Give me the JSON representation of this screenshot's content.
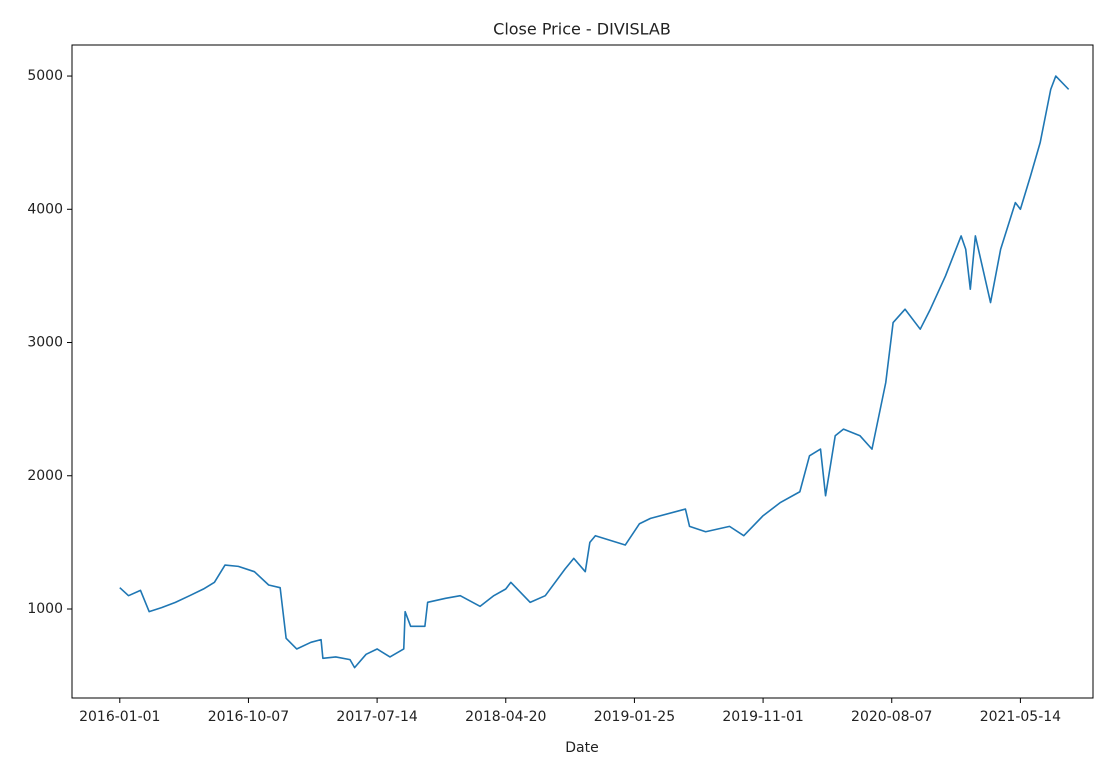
{
  "chart_data": {
    "type": "line",
    "title": "Close Price - DIVISLAB",
    "x_label": "Date",
    "x": [
      "2016-01-01",
      "2016-01-20",
      "2016-02-15",
      "2016-03-05",
      "2016-04-01",
      "2016-05-01",
      "2016-06-01",
      "2016-07-01",
      "2016-07-25",
      "2016-08-17",
      "2016-09-15",
      "2016-10-20",
      "2016-11-20",
      "2016-12-15",
      "2016-12-28",
      "2017-01-20",
      "2017-02-20",
      "2017-03-14",
      "2017-03-18",
      "2017-04-15",
      "2017-05-16",
      "2017-05-26",
      "2017-06-20",
      "2017-07-14",
      "2017-08-11",
      "2017-09-10",
      "2017-09-13",
      "2017-09-25",
      "2017-10-26",
      "2017-11-01",
      "2017-12-10",
      "2018-01-11",
      "2018-02-23",
      "2018-03-25",
      "2018-04-20",
      "2018-05-01",
      "2018-06-12",
      "2018-07-15",
      "2018-08-27",
      "2018-09-15",
      "2018-10-10",
      "2018-10-20",
      "2018-11-01",
      "2019-01-05",
      "2019-02-05",
      "2019-03-01",
      "2019-05-16",
      "2019-05-25",
      "2019-06-29",
      "2019-08-20",
      "2019-09-20",
      "2019-11-01",
      "2019-12-09",
      "2020-01-20",
      "2020-02-10",
      "2020-03-05",
      "2020-03-16",
      "2020-04-06",
      "2020-04-24",
      "2020-05-30",
      "2020-06-25",
      "2020-07-25",
      "2020-08-10",
      "2020-09-05",
      "2020-10-08",
      "2020-10-30",
      "2020-12-02",
      "2021-01-05",
      "2021-01-15",
      "2021-01-25",
      "2021-02-05",
      "2021-03-10",
      "2021-04-01",
      "2021-05-03",
      "2021-05-14",
      "2021-06-05",
      "2021-06-26",
      "2021-07-19",
      "2021-07-30",
      "2021-08-27"
    ],
    "series": [
      {
        "name": "Close",
        "color": "#1f77b4",
        "values": [
          1160,
          1100,
          1140,
          980,
          1010,
          1050,
          1100,
          1150,
          1200,
          1330,
          1320,
          1280,
          1180,
          1160,
          780,
          700,
          750,
          770,
          630,
          640,
          620,
          560,
          660,
          700,
          640,
          700,
          980,
          870,
          870,
          1050,
          1080,
          1100,
          1020,
          1100,
          1150,
          1200,
          1050,
          1100,
          1300,
          1380,
          1280,
          1500,
          1550,
          1480,
          1640,
          1680,
          1750,
          1620,
          1580,
          1620,
          1550,
          1700,
          1800,
          1880,
          2150,
          2200,
          1850,
          2300,
          2350,
          2300,
          2200,
          2700,
          3150,
          3250,
          3100,
          3250,
          3500,
          3800,
          3700,
          3400,
          3800,
          3300,
          3700,
          4050,
          4000,
          4250,
          4500,
          4900,
          5000,
          4900
        ]
      }
    ],
    "xlim": [
      "2015-09-19",
      "2021-10-19"
    ],
    "xticks": [
      "2016-01-01",
      "2016-10-07",
      "2017-07-14",
      "2018-04-20",
      "2019-01-25",
      "2019-11-01",
      "2020-08-07",
      "2021-05-14"
    ],
    "ylim": [
      332,
      5233
    ],
    "yticks": [
      1000,
      2000,
      3000,
      4000,
      5000
    ],
    "grid": false
  }
}
